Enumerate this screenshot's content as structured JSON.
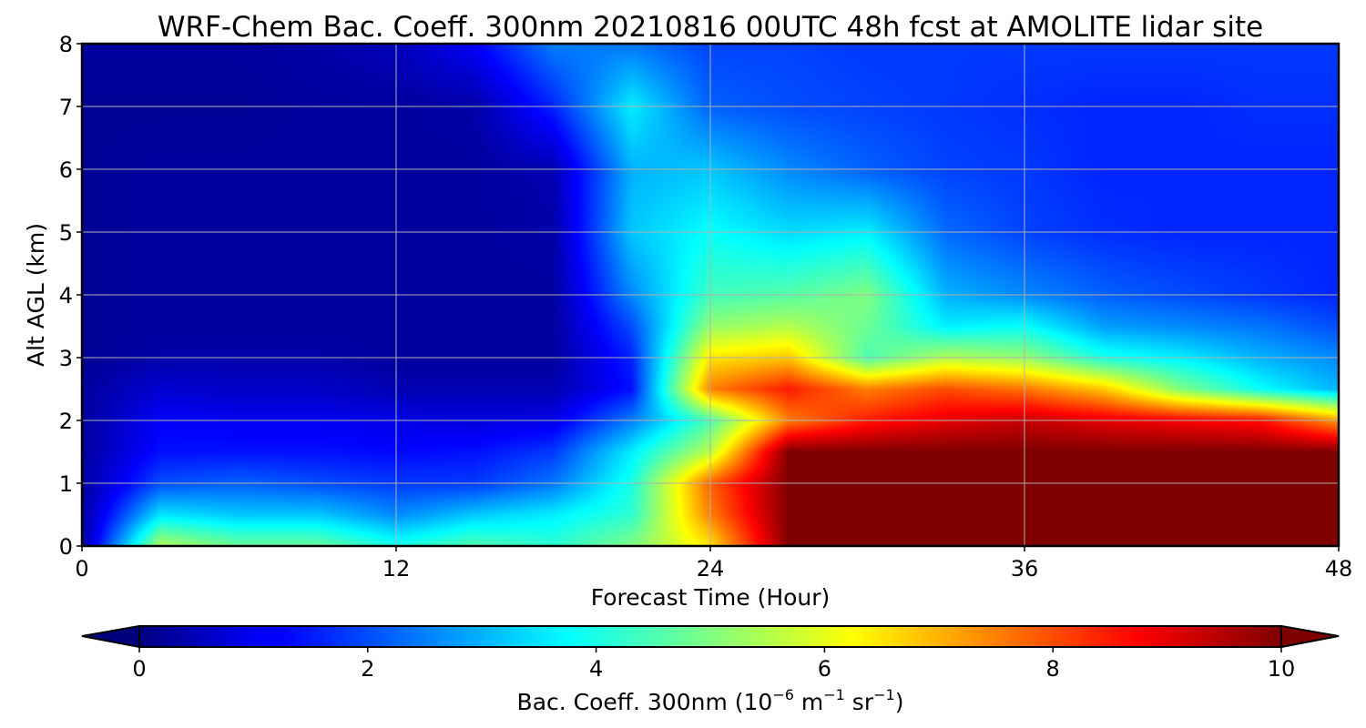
{
  "chart_data": {
    "type": "heatmap",
    "title": "WRF-Chem Bac. Coeff. 300nm  20210816 00UTC 48h fcst at AMOLITE lidar site",
    "xlabel": "Forecast Time (Hour)",
    "ylabel": "Alt AGL (km)",
    "xlim": [
      0,
      48
    ],
    "ylim": [
      0,
      8
    ],
    "x_ticks": [
      "0",
      "12",
      "24",
      "36",
      "48"
    ],
    "y_ticks": [
      "0",
      "1",
      "2",
      "3",
      "4",
      "5",
      "6",
      "7",
      "8"
    ],
    "grid": true,
    "colorbar": {
      "label_main": "Bac. Coeff. 300nm  (10",
      "label_exp1": "−6",
      "label_mid": " m",
      "label_exp2": "−1",
      "label_mid2": " sr",
      "label_exp3": "−1",
      "label_end": ")",
      "ticks": [
        "0",
        "2",
        "4",
        "6",
        "8",
        "10"
      ],
      "range": [
        0,
        10
      ],
      "extend": "both",
      "colormap": "jet"
    },
    "x_hours": [
      0,
      3,
      6,
      9,
      12,
      15,
      18,
      21,
      24,
      27,
      30,
      33,
      36,
      39,
      42,
      45,
      48
    ],
    "z_km": [
      0,
      0.5,
      1,
      1.5,
      2,
      2.5,
      3,
      3.5,
      4,
      5,
      6,
      7,
      8
    ],
    "values": [
      [
        0.3,
        5.5,
        4.8,
        4.8,
        4.0,
        4.6,
        4.2,
        5.0,
        6.5,
        10,
        10,
        10,
        10,
        10,
        10,
        10,
        10
      ],
      [
        0.3,
        3.5,
        3.2,
        3.2,
        2.6,
        3.2,
        3.6,
        4.2,
        7.5,
        10,
        10,
        10,
        10,
        10,
        10,
        10,
        10
      ],
      [
        0.3,
        2.0,
        2.2,
        2.0,
        1.8,
        1.8,
        2.4,
        4.0,
        7.8,
        10,
        10,
        10,
        10,
        10,
        10,
        10,
        10
      ],
      [
        0.3,
        1.4,
        1.4,
        1.4,
        1.3,
        1.4,
        1.8,
        3.6,
        5.6,
        10,
        10,
        10,
        10,
        10,
        10,
        10,
        10
      ],
      [
        0.3,
        1.2,
        1.1,
        1.1,
        1.0,
        0.9,
        1.0,
        2.5,
        4.5,
        7.5,
        8.5,
        9.0,
        9.3,
        9.0,
        8.8,
        8.6,
        7.2
      ],
      [
        0.3,
        0.8,
        0.7,
        0.7,
        0.5,
        0.5,
        0.5,
        1.4,
        7.5,
        8.5,
        7.5,
        8.0,
        7.6,
        6.8,
        5.0,
        3.8,
        3.0
      ],
      [
        0.2,
        0.4,
        0.4,
        0.4,
        0.3,
        0.3,
        0.3,
        1.6,
        6.5,
        6.8,
        4.5,
        5.5,
        5.2,
        4.0,
        3.6,
        3.0,
        2.6
      ],
      [
        0.2,
        0.3,
        0.3,
        0.3,
        0.3,
        0.3,
        0.3,
        2.0,
        5.2,
        5.5,
        4.8,
        3.6,
        3.8,
        2.8,
        2.6,
        2.4,
        2.0
      ],
      [
        0.2,
        0.3,
        0.3,
        0.3,
        0.3,
        0.3,
        0.3,
        2.6,
        4.4,
        4.6,
        5.0,
        3.0,
        2.6,
        2.2,
        2.0,
        1.8,
        1.6
      ],
      [
        0.2,
        0.3,
        0.3,
        0.3,
        0.3,
        0.3,
        0.4,
        3.2,
        3.8,
        3.4,
        3.6,
        2.3,
        1.9,
        1.7,
        1.6,
        1.6,
        1.6
      ],
      [
        0.2,
        0.3,
        0.3,
        0.3,
        0.3,
        0.3,
        0.5,
        3.0,
        3.2,
        2.6,
        2.2,
        1.9,
        1.8,
        1.6,
        1.6,
        1.6,
        1.6
      ],
      [
        0.2,
        0.2,
        0.2,
        0.3,
        0.3,
        0.4,
        1.6,
        3.6,
        2.2,
        2.0,
        1.9,
        1.8,
        1.7,
        1.6,
        1.6,
        1.7,
        1.7
      ],
      [
        0.3,
        0.3,
        0.3,
        0.4,
        0.6,
        1.2,
        2.5,
        2.4,
        1.9,
        1.9,
        1.8,
        1.8,
        1.8,
        1.8,
        1.8,
        1.8,
        1.8
      ]
    ]
  }
}
